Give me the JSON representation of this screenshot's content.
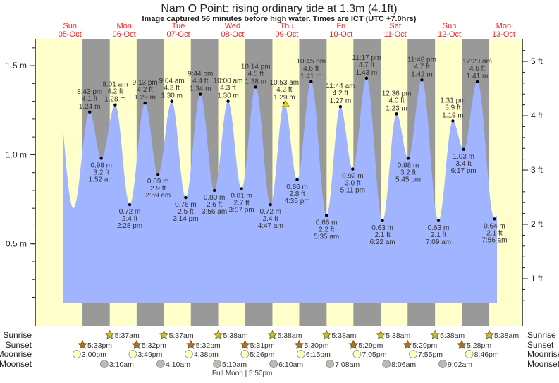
{
  "title": "Nam O Point: rising  ordinary tide at 1.3m (4.1ft)",
  "subtitle": "Image captured 56 minutes before high water. Times are ICT (UTC +7.0hrs)",
  "colors": {
    "day": "#ffffcc",
    "night": "#999999",
    "tide": "#a0b4ff",
    "day_label": "#ff2020",
    "sunrise": "#c8c030",
    "sunset": "#b07030",
    "moonrise": "#ffffc0",
    "moonset": "#bbbbb0"
  },
  "chart_data": {
    "type": "area",
    "title": "Nam O Point: rising  ordinary tide at 1.3m (4.1ft)",
    "days": [
      {
        "dow": "Sun",
        "date": "05-Oct"
      },
      {
        "dow": "Mon",
        "date": "06-Oct"
      },
      {
        "dow": "Tue",
        "date": "07-Oct"
      },
      {
        "dow": "Wed",
        "date": "08-Oct"
      },
      {
        "dow": "Thu",
        "date": "09-Oct"
      },
      {
        "dow": "Fri",
        "date": "10-Oct"
      },
      {
        "dow": "Sat",
        "date": "11-Oct"
      },
      {
        "dow": "Sun",
        "date": "12-Oct"
      },
      {
        "dow": "Mon",
        "date": "13-Oct"
      }
    ],
    "y_left": {
      "unit": "m",
      "ticks": [
        "0.5 m",
        "1.0 m",
        "1.5 m"
      ],
      "tick_values": [
        0.5,
        1.0,
        1.5
      ]
    },
    "y_right": {
      "unit": "ft",
      "ticks": [
        "1 ft",
        "2 ft",
        "3 ft",
        "4 ft",
        "5 ft"
      ],
      "tick_values": [
        1,
        2,
        3,
        4,
        5
      ]
    },
    "extremes": [
      {
        "date": "05-Oct",
        "time": "8:43 pm",
        "type": "high",
        "m": "1.24 m",
        "ft": "4.1 ft"
      },
      {
        "date": "06-Oct",
        "time": "1:52 am",
        "type": "low",
        "m": "0.98 m",
        "ft": "3.2 ft"
      },
      {
        "date": "06-Oct",
        "time": "8:01 am",
        "type": "high",
        "m": "1.28 m",
        "ft": "4.2 ft"
      },
      {
        "date": "06-Oct",
        "time": "2:28 pm",
        "type": "low",
        "m": "0.72 m",
        "ft": "2.4 ft"
      },
      {
        "date": "06-Oct",
        "time": "9:13 pm",
        "type": "high",
        "m": "1.29 m",
        "ft": "4.2 ft"
      },
      {
        "date": "07-Oct",
        "time": "2:59 am",
        "type": "low",
        "m": "0.89 m",
        "ft": "2.9 ft"
      },
      {
        "date": "07-Oct",
        "time": "9:04 am",
        "type": "high",
        "m": "1.30 m",
        "ft": "4.3 ft"
      },
      {
        "date": "07-Oct",
        "time": "3:14 pm",
        "type": "low",
        "m": "0.76 m",
        "ft": "2.5 ft"
      },
      {
        "date": "07-Oct",
        "time": "9:44 pm",
        "type": "high",
        "m": "1.34 m",
        "ft": "4.4 ft"
      },
      {
        "date": "08-Oct",
        "time": "3:56 am",
        "type": "low",
        "m": "0.80 m",
        "ft": "2.6 ft"
      },
      {
        "date": "08-Oct",
        "time": "10:00 am",
        "type": "high",
        "m": "1.30 m",
        "ft": "4.3 ft"
      },
      {
        "date": "08-Oct",
        "time": "3:57 pm",
        "type": "low",
        "m": "0.81 m",
        "ft": "2.7 ft"
      },
      {
        "date": "08-Oct",
        "time": "10:14 pm",
        "type": "high",
        "m": "1.38 m",
        "ft": "4.5 ft"
      },
      {
        "date": "09-Oct",
        "time": "4:47 am",
        "type": "low",
        "m": "0.72 m",
        "ft": "2.4 ft"
      },
      {
        "date": "09-Oct",
        "time": "10:53 am",
        "type": "high",
        "m": "1.29 m",
        "ft": "4.2 ft"
      },
      {
        "date": "09-Oct",
        "time": "4:35 pm",
        "type": "low",
        "m": "0.86 m",
        "ft": "2.8 ft"
      },
      {
        "date": "09-Oct",
        "time": "10:45 pm",
        "type": "high",
        "m": "1.41 m",
        "ft": "4.6 ft"
      },
      {
        "date": "10-Oct",
        "time": "5:35 am",
        "type": "low",
        "m": "0.66 m",
        "ft": "2.2 ft"
      },
      {
        "date": "10-Oct",
        "time": "11:44 am",
        "type": "high",
        "m": "1.27 m",
        "ft": "4.2 ft"
      },
      {
        "date": "10-Oct",
        "time": "5:11 pm",
        "type": "low",
        "m": "0.92 m",
        "ft": "3.0 ft"
      },
      {
        "date": "10-Oct",
        "time": "11:17 pm",
        "type": "high",
        "m": "1.43 m",
        "ft": "4.7 ft"
      },
      {
        "date": "11-Oct",
        "time": "6:22 am",
        "type": "low",
        "m": "0.63 m",
        "ft": "2.1 ft"
      },
      {
        "date": "11-Oct",
        "time": "12:36 pm",
        "type": "high",
        "m": "1.23 m",
        "ft": "4.0 ft"
      },
      {
        "date": "11-Oct",
        "time": "5:45 pm",
        "type": "low",
        "m": "0.98 m",
        "ft": "3.2 ft"
      },
      {
        "date": "11-Oct",
        "time": "11:48 pm",
        "type": "high",
        "m": "1.42 m",
        "ft": "4.7 ft"
      },
      {
        "date": "12-Oct",
        "time": "7:09 am",
        "type": "low",
        "m": "0.63 m",
        "ft": "2.1 ft"
      },
      {
        "date": "12-Oct",
        "time": "1:31 pm",
        "type": "high",
        "m": "1.19 m",
        "ft": "3.9 ft"
      },
      {
        "date": "12-Oct",
        "time": "6:17 pm",
        "type": "low",
        "m": "1.03 m",
        "ft": "3.4 ft"
      },
      {
        "date": "13-Oct",
        "time": "12:20 am",
        "type": "high",
        "m": "1.41 m",
        "ft": "4.6 ft"
      },
      {
        "date": "13-Oct",
        "time": "7:56 am",
        "type": "low",
        "m": "0.64 m",
        "ft": "2.1 ft"
      }
    ],
    "current_time_marker": {
      "date": "09-Oct",
      "time": "9:57 am"
    }
  },
  "astronomy": {
    "sunrise": {
      "label": "Sunrise",
      "events": [
        {
          "date": "06-Oct",
          "time": "5:37am"
        },
        {
          "date": "07-Oct",
          "time": "5:37am"
        },
        {
          "date": "08-Oct",
          "time": "5:38am"
        },
        {
          "date": "09-Oct",
          "time": "5:38am"
        },
        {
          "date": "10-Oct",
          "time": "5:38am"
        },
        {
          "date": "11-Oct",
          "time": "5:38am"
        },
        {
          "date": "12-Oct",
          "time": "5:38am"
        },
        {
          "date": "13-Oct",
          "time": "5:38am"
        }
      ]
    },
    "sunset": {
      "label": "Sunset",
      "events": [
        {
          "date": "05-Oct",
          "time": "5:33pm"
        },
        {
          "date": "06-Oct",
          "time": "5:32pm"
        },
        {
          "date": "07-Oct",
          "time": "5:32pm"
        },
        {
          "date": "08-Oct",
          "time": "5:31pm"
        },
        {
          "date": "09-Oct",
          "time": "5:30pm"
        },
        {
          "date": "10-Oct",
          "time": "5:29pm"
        },
        {
          "date": "11-Oct",
          "time": "5:29pm"
        },
        {
          "date": "12-Oct",
          "time": "5:28pm"
        }
      ]
    },
    "moonrise": {
      "label": "Moonrise",
      "events": [
        {
          "date": "05-Oct",
          "time": "3:00pm"
        },
        {
          "date": "06-Oct",
          "time": "3:49pm"
        },
        {
          "date": "07-Oct",
          "time": "4:38pm"
        },
        {
          "date": "08-Oct",
          "time": "5:26pm"
        },
        {
          "date": "09-Oct",
          "time": "6:15pm"
        },
        {
          "date": "10-Oct",
          "time": "7:05pm"
        },
        {
          "date": "11-Oct",
          "time": "7:55pm"
        },
        {
          "date": "12-Oct",
          "time": "8:46pm"
        }
      ]
    },
    "moonset": {
      "label": "Moonset",
      "events": [
        {
          "date": "06-Oct",
          "time": "3:10am"
        },
        {
          "date": "07-Oct",
          "time": "4:10am"
        },
        {
          "date": "08-Oct",
          "time": "5:10am"
        },
        {
          "date": "09-Oct",
          "time": "6:10am"
        },
        {
          "date": "10-Oct",
          "time": "7:08am"
        },
        {
          "date": "11-Oct",
          "time": "8:06am"
        },
        {
          "date": "12-Oct",
          "time": "9:02am"
        }
      ]
    },
    "moon_phase": {
      "label": "Full Moon | 5:50pm",
      "date": "08-Oct",
      "time": "5:50pm"
    }
  }
}
